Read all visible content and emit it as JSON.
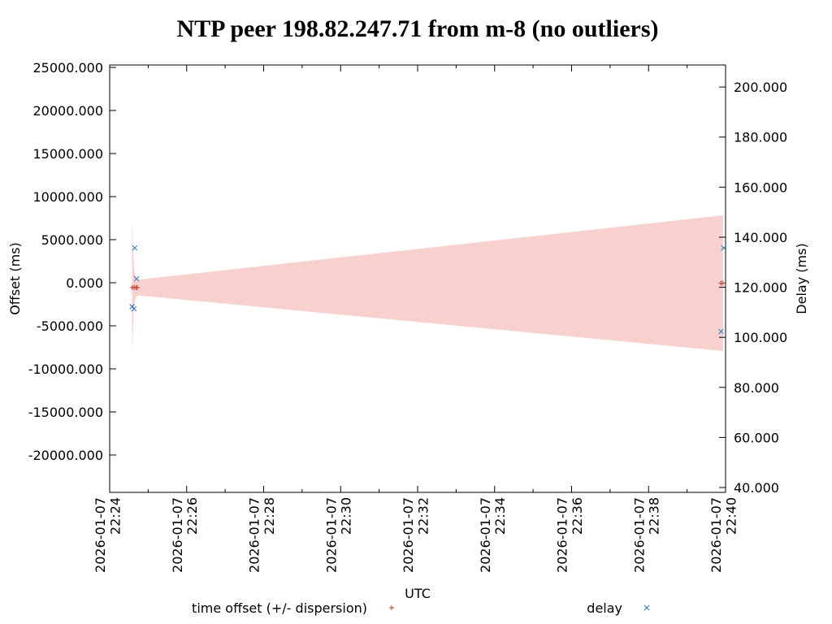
{
  "chart_data": {
    "type": "scatter",
    "title": "NTP peer 198.82.247.71 from m-8 (no outliers)",
    "x_label": "UTC",
    "y_label": "Offset (ms)",
    "y2_label": "Delay (ms)",
    "xlim": [
      "2026-01-07 22:24",
      "2026-01-07 22:40"
    ],
    "xticks": [
      "2026-01-07 22:24",
      "2026-01-07 22:26",
      "2026-01-07 22:28",
      "2026-01-07 22:30",
      "2026-01-07 22:32",
      "2026-01-07 22:34",
      "2026-01-07 22:36",
      "2026-01-07 22:38",
      "2026-01-07 22:40"
    ],
    "ylim": [
      -24340,
      25280
    ],
    "yticks": [
      {
        "value": 25000,
        "label": "25000.000"
      },
      {
        "value": 20000,
        "label": "20000.000"
      },
      {
        "value": 15000,
        "label": "15000.000"
      },
      {
        "value": 10000,
        "label": "10000.000"
      },
      {
        "value": 5000,
        "label": "5000.000"
      },
      {
        "value": 0,
        "label": "0.000"
      },
      {
        "value": -5000,
        "label": "-5000.000"
      },
      {
        "value": -10000,
        "label": "-10000.000"
      },
      {
        "value": -15000,
        "label": "-15000.000"
      },
      {
        "value": -20000,
        "label": "-20000.000"
      }
    ],
    "y2lim": [
      38.05,
      208.8
    ],
    "y2ticks": [
      {
        "value": 200,
        "label": "200.000"
      },
      {
        "value": 180,
        "label": "180.000"
      },
      {
        "value": 160,
        "label": "160.000"
      },
      {
        "value": 140,
        "label": "140.000"
      },
      {
        "value": 120,
        "label": "120.000"
      },
      {
        "value": 100,
        "label": "100.000"
      },
      {
        "value": 80,
        "label": "80.000"
      },
      {
        "value": 60,
        "label": "60.000"
      },
      {
        "value": 40,
        "label": "40.000"
      }
    ],
    "series": [
      {
        "name": "time offset (+/- dispersion)",
        "color": "#c0392b",
        "band_color": "#f8d0ce",
        "x": [
          "2026-01-07 22:24:35",
          "2026-01-07 22:24:38",
          "2026-01-07 22:24:41",
          "2026-01-07 22:24:43",
          "2026-01-07 22:39:53",
          "2026-01-07 22:39:56"
        ],
        "values": [
          -560,
          -560,
          -560,
          -560,
          -50,
          -50
        ],
        "dispersion": [
          7500,
          2000,
          1200,
          900,
          7850,
          7880
        ]
      },
      {
        "name": "delay",
        "color": "#1f77c4",
        "axis": "y2",
        "x": [
          "2026-01-07 22:24:35",
          "2026-01-07 22:24:38",
          "2026-01-07 22:24:39",
          "2026-01-07 22:24:42",
          "2026-01-07 22:39:53",
          "2026-01-07 22:39:57"
        ],
        "values": [
          112.3,
          111.4,
          135.7,
          123.4,
          102.3,
          135.7
        ]
      }
    ]
  }
}
